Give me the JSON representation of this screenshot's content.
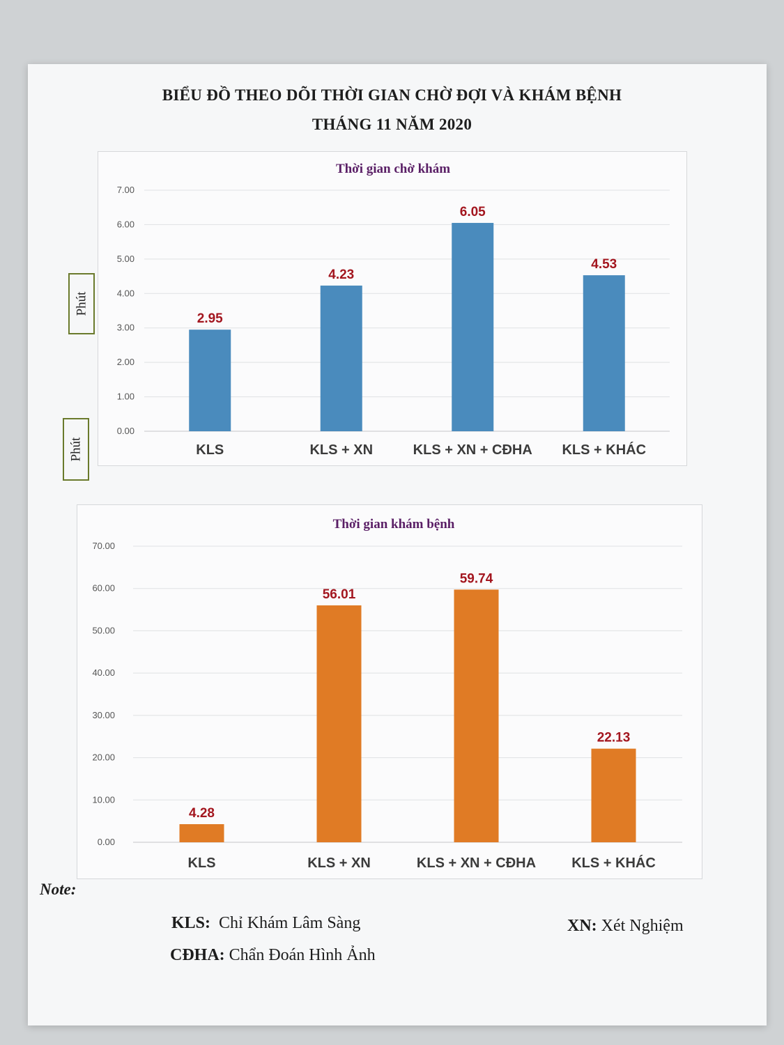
{
  "page": {
    "title_line1": "BIỂU ĐỒ THEO DÕI THỜI GIAN CHỜ ĐỢI VÀ KHÁM BỆNH",
    "title_line2": "THÁNG 11 NĂM 2020",
    "unit_label": "Phút"
  },
  "notes": {
    "title": "Note:",
    "items": [
      {
        "abbr": "KLS:",
        "text": "Chỉ Khám Lâm Sàng"
      },
      {
        "abbr": "XN:",
        "text": "Xét Nghiệm"
      },
      {
        "abbr": "CĐHA:",
        "text": "Chẩn Đoán Hình Ảnh"
      }
    ]
  },
  "colors": {
    "wait_bar": "#4a8bbd",
    "exam_bar": "#e07b25",
    "data_label": "#a3161f",
    "chart_title": "#5a1f66"
  },
  "chart_data": [
    {
      "type": "bar",
      "title": "Thời gian chờ khám",
      "categories": [
        "KLS",
        "KLS + XN",
        "KLS + XN + CĐHA",
        "KLS + KHÁC"
      ],
      "values": [
        2.95,
        4.23,
        6.05,
        4.53
      ],
      "value_labels": [
        "2.95",
        "4.23",
        "6.05",
        "4.53"
      ],
      "yticks": [
        "0.00",
        "1.00",
        "2.00",
        "3.00",
        "4.00",
        "5.00",
        "6.00",
        "7.00"
      ],
      "ylim": [
        0,
        7
      ],
      "ylabel": "Phút",
      "color": "#4a8bbd",
      "grid": true
    },
    {
      "type": "bar",
      "title": "Thời gian khám bệnh",
      "categories": [
        "KLS",
        "KLS + XN",
        "KLS + XN + CĐHA",
        "KLS + KHÁC"
      ],
      "values": [
        4.28,
        56.01,
        59.74,
        22.13
      ],
      "value_labels": [
        "4.28",
        "56.01",
        "59.74",
        "22.13"
      ],
      "yticks": [
        "0.00",
        "10.00",
        "20.00",
        "30.00",
        "40.00",
        "50.00",
        "60.00",
        "70.00"
      ],
      "ylim": [
        0,
        70
      ],
      "ylabel": "Phút",
      "color": "#e07b25",
      "grid": true
    }
  ]
}
